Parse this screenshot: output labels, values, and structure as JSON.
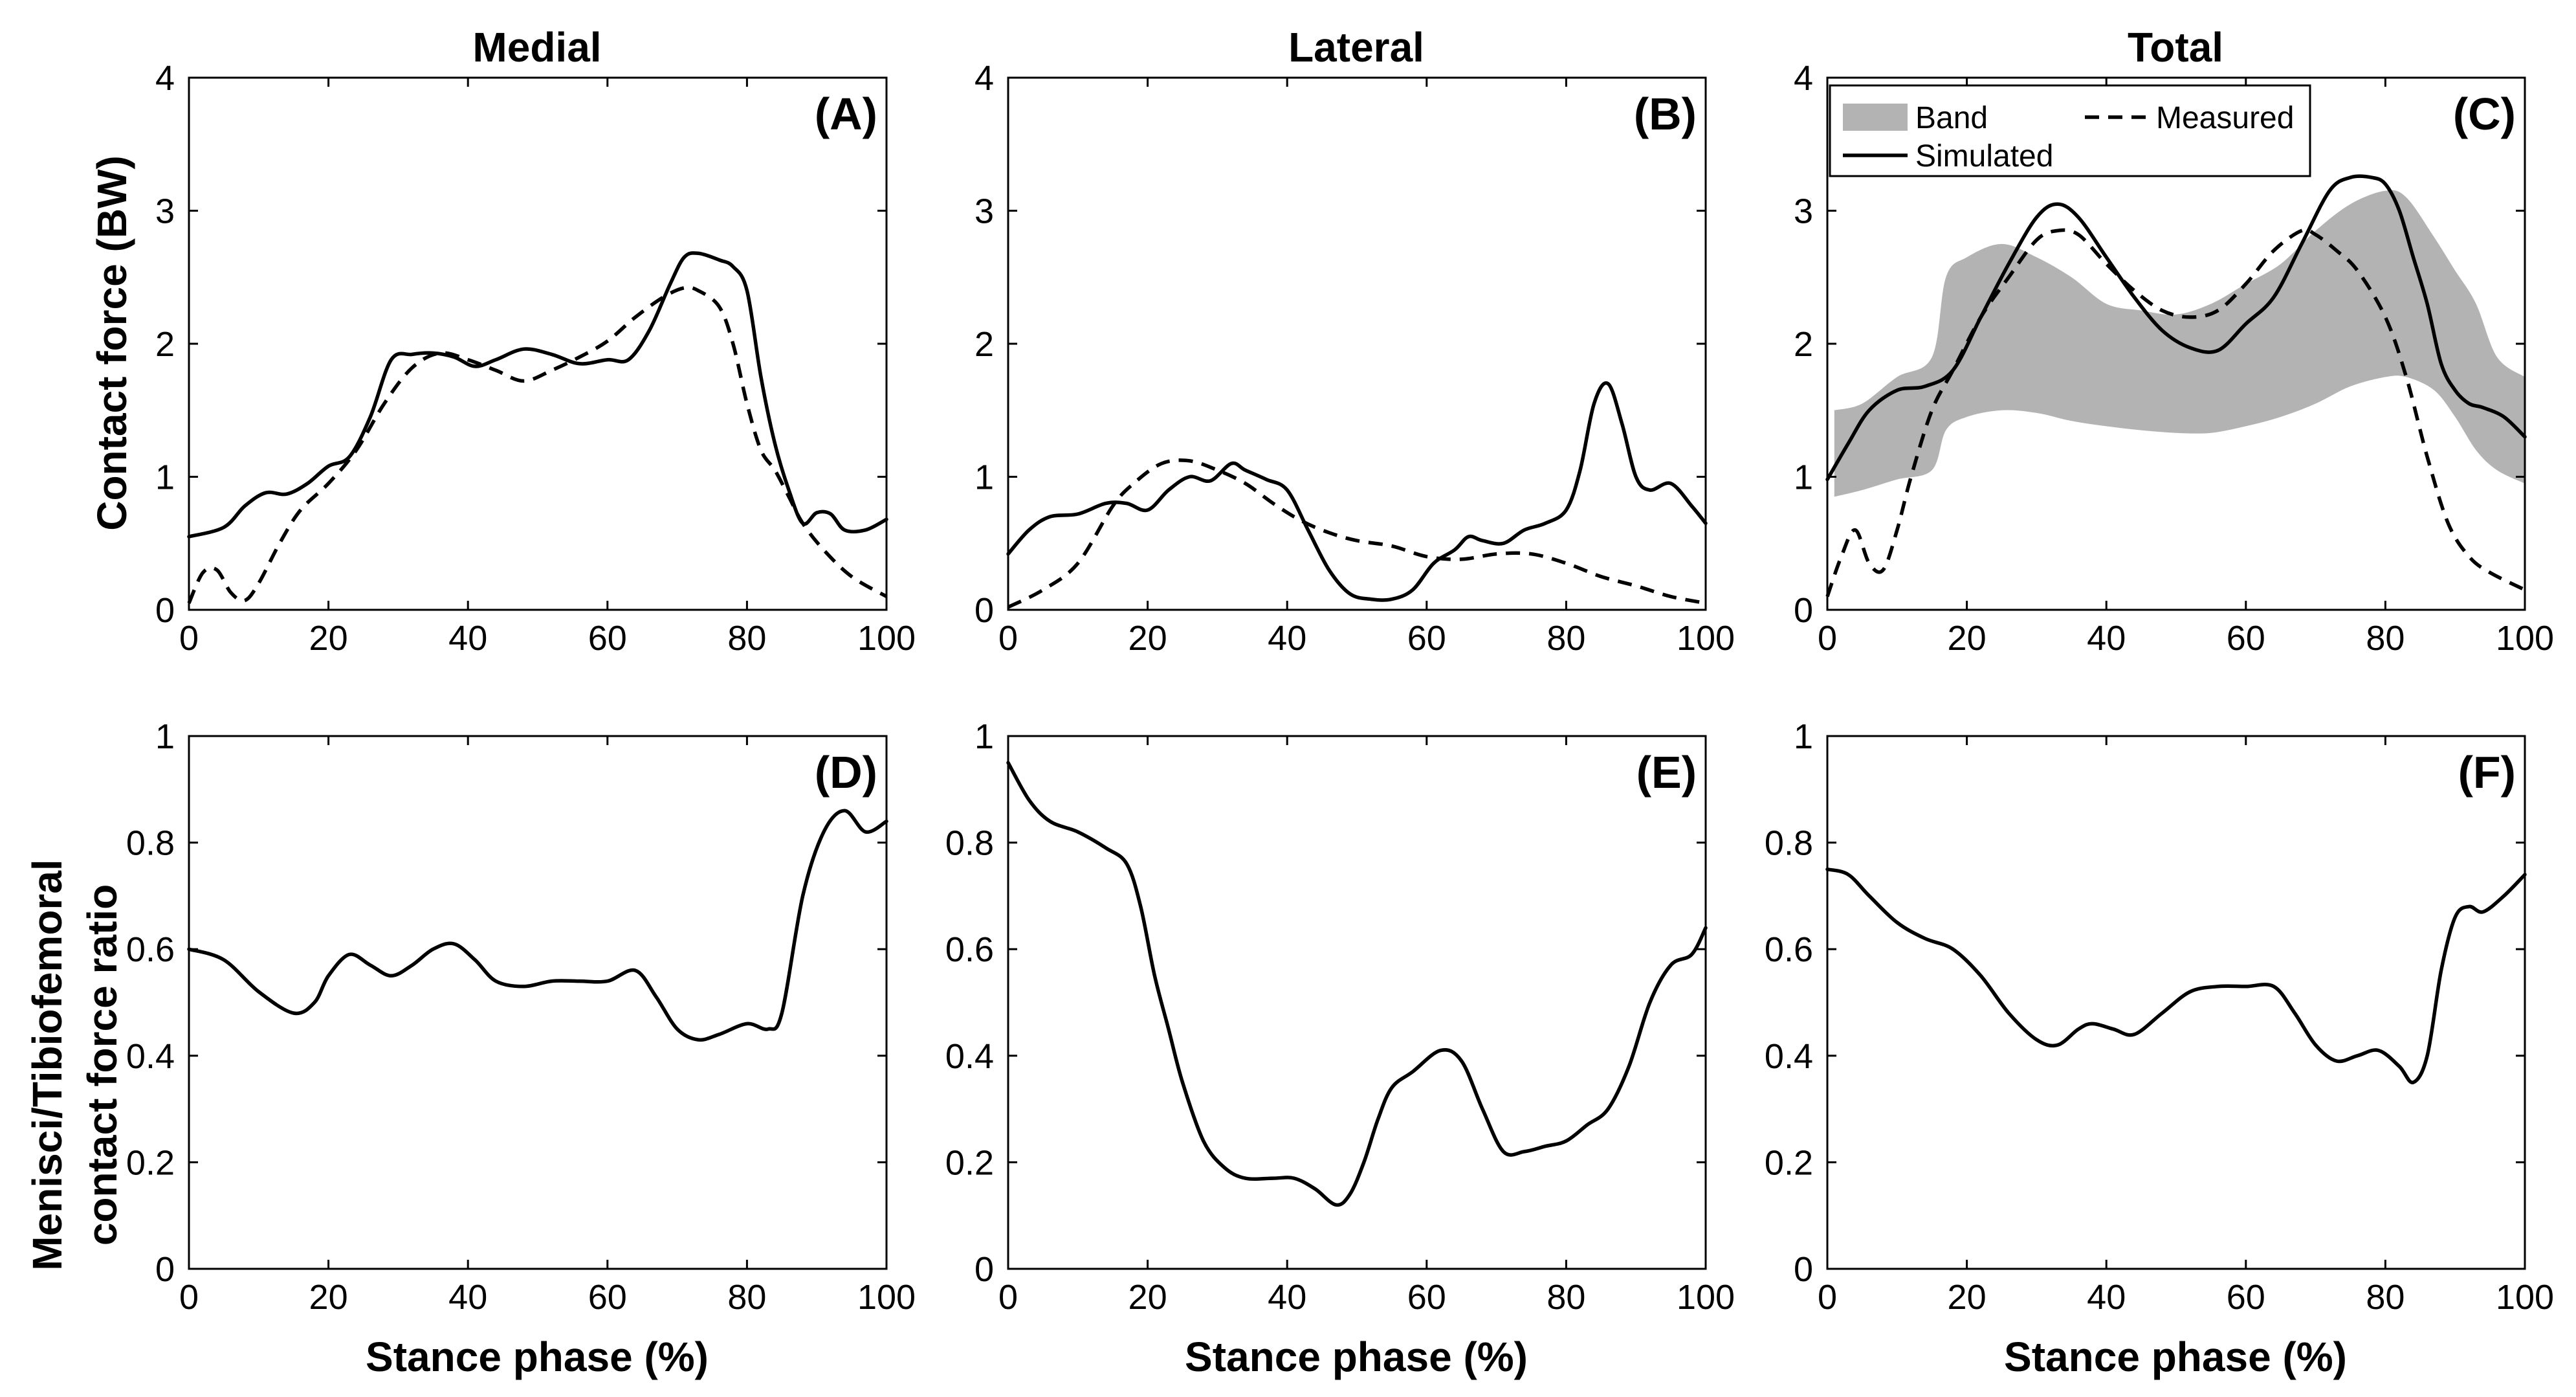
{
  "figure": {
    "column_titles": [
      "Medial",
      "Lateral",
      "Total"
    ],
    "top_ylabel": "Contact force (BW)",
    "bottom_ylabel_line1": "Menisci/Tibiofemoral",
    "bottom_ylabel_line2": "contact force ratio",
    "bottom_xlabel": "Stance phase (%)"
  },
  "chart_data": [
    {
      "id": "A",
      "panel_label": "(A)",
      "type": "line",
      "title": "Medial",
      "xlabel": "",
      "ylabel": "Contact force (BW)",
      "xlim": [
        0,
        100
      ],
      "ylim": [
        0,
        4
      ],
      "xticks": [
        0,
        20,
        40,
        60,
        80,
        100
      ],
      "yticks": [
        0,
        1,
        2,
        3,
        4
      ],
      "series": [
        {
          "name": "Simulated",
          "style": "solid",
          "x": [
            0,
            5,
            8,
            11,
            14,
            17,
            20,
            23,
            26,
            29,
            32,
            35,
            38,
            41,
            44,
            48,
            52,
            56,
            60,
            63,
            66,
            69,
            71,
            73,
            76,
            78,
            80,
            82,
            84,
            86,
            88,
            90,
            92,
            94,
            97,
            100
          ],
          "y": [
            0.55,
            0.62,
            0.78,
            0.88,
            0.87,
            0.95,
            1.08,
            1.15,
            1.45,
            1.88,
            1.92,
            1.93,
            1.9,
            1.83,
            1.88,
            1.96,
            1.92,
            1.85,
            1.88,
            1.88,
            2.1,
            2.45,
            2.65,
            2.68,
            2.63,
            2.58,
            2.4,
            1.75,
            1.25,
            0.9,
            0.65,
            0.73,
            0.72,
            0.6,
            0.6,
            0.68
          ]
        },
        {
          "name": "Measured",
          "style": "dashed",
          "x": [
            0,
            2,
            4,
            6,
            8,
            10,
            13,
            16,
            20,
            24,
            28,
            32,
            36,
            40,
            44,
            48,
            52,
            56,
            60,
            64,
            68,
            71,
            73,
            76,
            78,
            80,
            82,
            84,
            86,
            88,
            91,
            95,
            100
          ],
          "y": [
            0.05,
            0.28,
            0.3,
            0.13,
            0.07,
            0.2,
            0.5,
            0.75,
            0.95,
            1.2,
            1.55,
            1.82,
            1.93,
            1.88,
            1.8,
            1.72,
            1.8,
            1.9,
            2.02,
            2.2,
            2.35,
            2.42,
            2.4,
            2.28,
            2.0,
            1.55,
            1.2,
            1.05,
            0.85,
            0.65,
            0.45,
            0.25,
            0.1
          ]
        }
      ]
    },
    {
      "id": "B",
      "panel_label": "(B)",
      "type": "line",
      "title": "Lateral",
      "xlabel": "",
      "ylabel": "",
      "xlim": [
        0,
        100
      ],
      "ylim": [
        0,
        4
      ],
      "xticks": [
        0,
        20,
        40,
        60,
        80,
        100
      ],
      "yticks": [
        0,
        1,
        2,
        3,
        4
      ],
      "series": [
        {
          "name": "Simulated",
          "style": "solid",
          "x": [
            0,
            3,
            6,
            10,
            14,
            17,
            20,
            23,
            26,
            29,
            32,
            34,
            37,
            40,
            43,
            46,
            49,
            52,
            55,
            58,
            61,
            64,
            66,
            68,
            71,
            74,
            77,
            80,
            82,
            84,
            86,
            88,
            90,
            92,
            95,
            98,
            100
          ],
          "y": [
            0.42,
            0.6,
            0.7,
            0.72,
            0.8,
            0.8,
            0.75,
            0.9,
            1.0,
            0.97,
            1.1,
            1.05,
            0.98,
            0.9,
            0.6,
            0.3,
            0.12,
            0.08,
            0.08,
            0.15,
            0.35,
            0.45,
            0.55,
            0.52,
            0.5,
            0.6,
            0.65,
            0.75,
            1.05,
            1.55,
            1.7,
            1.4,
            1.0,
            0.9,
            0.95,
            0.78,
            0.65
          ]
        },
        {
          "name": "Measured",
          "style": "dashed",
          "x": [
            0,
            5,
            10,
            15,
            18,
            22,
            26,
            30,
            34,
            38,
            42,
            46,
            50,
            55,
            60,
            65,
            70,
            75,
            80,
            85,
            90,
            95,
            100
          ],
          "y": [
            0.02,
            0.15,
            0.35,
            0.78,
            0.95,
            1.1,
            1.12,
            1.05,
            0.95,
            0.8,
            0.67,
            0.58,
            0.52,
            0.48,
            0.4,
            0.38,
            0.42,
            0.42,
            0.35,
            0.25,
            0.18,
            0.1,
            0.05
          ]
        }
      ]
    },
    {
      "id": "C",
      "panel_label": "(C)",
      "type": "line",
      "title": "Total",
      "xlabel": "",
      "ylabel": "",
      "xlim": [
        0,
        100
      ],
      "ylim": [
        0,
        4
      ],
      "xticks": [
        0,
        20,
        40,
        60,
        80,
        100
      ],
      "yticks": [
        0,
        1,
        2,
        3,
        4
      ],
      "legend": {
        "position": "top-left",
        "entries": [
          "Band",
          "Measured",
          "Simulated"
        ]
      },
      "band": {
        "name": "Band",
        "x": [
          1,
          5,
          10,
          15,
          17,
          20,
          25,
          30,
          35,
          40,
          45,
          50,
          55,
          60,
          65,
          70,
          75,
          80,
          83,
          87,
          90,
          93,
          96,
          100
        ],
        "upper": [
          1.5,
          1.55,
          1.75,
          1.9,
          2.5,
          2.65,
          2.75,
          2.65,
          2.5,
          2.3,
          2.25,
          2.22,
          2.3,
          2.45,
          2.6,
          2.85,
          3.05,
          3.15,
          3.1,
          2.8,
          2.55,
          2.3,
          1.9,
          1.75
        ],
        "lower": [
          0.85,
          0.9,
          0.98,
          1.05,
          1.35,
          1.45,
          1.5,
          1.48,
          1.42,
          1.38,
          1.35,
          1.33,
          1.33,
          1.38,
          1.45,
          1.55,
          1.68,
          1.75,
          1.75,
          1.65,
          1.45,
          1.2,
          1.05,
          0.95
        ]
      },
      "series": [
        {
          "name": "Simulated",
          "style": "solid",
          "x": [
            0,
            3,
            6,
            10,
            14,
            18,
            22,
            26,
            30,
            33,
            36,
            40,
            44,
            48,
            52,
            56,
            60,
            64,
            68,
            72,
            75,
            78,
            80,
            82,
            84,
            86,
            88,
            90,
            92,
            94,
            97,
            100
          ],
          "y": [
            0.98,
            1.25,
            1.5,
            1.65,
            1.68,
            1.8,
            2.2,
            2.6,
            2.95,
            3.05,
            2.95,
            2.65,
            2.35,
            2.1,
            1.97,
            1.95,
            2.15,
            2.35,
            2.75,
            3.15,
            3.25,
            3.25,
            3.2,
            3.0,
            2.65,
            2.3,
            1.85,
            1.65,
            1.55,
            1.52,
            1.45,
            1.3
          ]
        },
        {
          "name": "Measured",
          "style": "dashed",
          "x": [
            0,
            2,
            4,
            6,
            8,
            10,
            12,
            15,
            18,
            22,
            26,
            30,
            33,
            36,
            40,
            44,
            48,
            52,
            56,
            60,
            64,
            68,
            70,
            73,
            76,
            80,
            83,
            86,
            89,
            92,
            95,
            100
          ],
          "y": [
            0.1,
            0.4,
            0.6,
            0.35,
            0.3,
            0.6,
            1.0,
            1.5,
            1.8,
            2.2,
            2.5,
            2.78,
            2.85,
            2.82,
            2.6,
            2.4,
            2.25,
            2.2,
            2.25,
            2.45,
            2.7,
            2.85,
            2.82,
            2.7,
            2.55,
            2.2,
            1.75,
            1.15,
            0.65,
            0.4,
            0.28,
            0.15
          ]
        }
      ]
    },
    {
      "id": "D",
      "panel_label": "(D)",
      "type": "line",
      "title": "",
      "xlabel": "Stance phase (%)",
      "ylabel": "Menisci/Tibiofemoral contact force ratio",
      "xlim": [
        0,
        100
      ],
      "ylim": [
        0,
        1
      ],
      "xticks": [
        0,
        20,
        40,
        60,
        80,
        100
      ],
      "yticks": [
        0,
        0.2,
        0.4,
        0.6,
        0.8,
        1
      ],
      "series": [
        {
          "name": "Ratio",
          "style": "solid",
          "x": [
            0,
            5,
            10,
            15,
            18,
            20,
            23,
            26,
            29,
            32,
            35,
            38,
            41,
            44,
            48,
            52,
            56,
            60,
            64,
            67,
            70,
            73,
            76,
            80,
            83,
            85,
            88,
            91,
            94,
            97,
            100
          ],
          "y": [
            0.6,
            0.58,
            0.52,
            0.48,
            0.5,
            0.55,
            0.59,
            0.57,
            0.55,
            0.57,
            0.6,
            0.61,
            0.58,
            0.54,
            0.53,
            0.54,
            0.54,
            0.54,
            0.56,
            0.51,
            0.45,
            0.43,
            0.44,
            0.46,
            0.45,
            0.48,
            0.7,
            0.82,
            0.86,
            0.82,
            0.84
          ]
        }
      ]
    },
    {
      "id": "E",
      "panel_label": "(E)",
      "type": "line",
      "title": "",
      "xlabel": "Stance phase (%)",
      "ylabel": "",
      "xlim": [
        0,
        100
      ],
      "ylim": [
        0,
        1
      ],
      "xticks": [
        0,
        20,
        40,
        60,
        80,
        100
      ],
      "yticks": [
        0,
        0.2,
        0.4,
        0.6,
        0.8,
        1
      ],
      "series": [
        {
          "name": "Ratio",
          "style": "solid",
          "x": [
            0,
            3,
            6,
            10,
            14,
            17,
            19,
            21,
            23,
            25,
            28,
            31,
            34,
            38,
            41,
            44,
            47,
            49,
            51,
            53,
            55,
            58,
            62,
            65,
            68,
            71,
            74,
            77,
            80,
            83,
            86,
            89,
            92,
            95,
            98,
            100
          ],
          "y": [
            0.95,
            0.88,
            0.84,
            0.82,
            0.79,
            0.76,
            0.68,
            0.55,
            0.45,
            0.35,
            0.24,
            0.19,
            0.17,
            0.17,
            0.17,
            0.15,
            0.12,
            0.14,
            0.2,
            0.28,
            0.34,
            0.37,
            0.41,
            0.39,
            0.3,
            0.22,
            0.22,
            0.23,
            0.24,
            0.27,
            0.3,
            0.38,
            0.5,
            0.57,
            0.59,
            0.64
          ]
        }
      ]
    },
    {
      "id": "F",
      "panel_label": "(F)",
      "type": "line",
      "title": "",
      "xlabel": "Stance phase (%)",
      "ylabel": "",
      "xlim": [
        0,
        100
      ],
      "ylim": [
        0,
        1
      ],
      "xticks": [
        0,
        20,
        40,
        60,
        80,
        100
      ],
      "yticks": [
        0,
        0.2,
        0.4,
        0.6,
        0.8,
        1
      ],
      "series": [
        {
          "name": "Ratio",
          "style": "solid",
          "x": [
            0,
            3,
            6,
            10,
            14,
            18,
            22,
            26,
            30,
            33,
            36,
            38,
            41,
            44,
            48,
            52,
            56,
            60,
            64,
            67,
            70,
            73,
            76,
            79,
            82,
            84,
            86,
            88,
            90,
            92,
            94,
            97,
            100
          ],
          "y": [
            0.75,
            0.74,
            0.7,
            0.65,
            0.62,
            0.6,
            0.55,
            0.48,
            0.43,
            0.42,
            0.45,
            0.46,
            0.45,
            0.44,
            0.48,
            0.52,
            0.53,
            0.53,
            0.53,
            0.48,
            0.42,
            0.39,
            0.4,
            0.41,
            0.38,
            0.35,
            0.4,
            0.56,
            0.66,
            0.68,
            0.67,
            0.7,
            0.74
          ]
        }
      ]
    }
  ]
}
